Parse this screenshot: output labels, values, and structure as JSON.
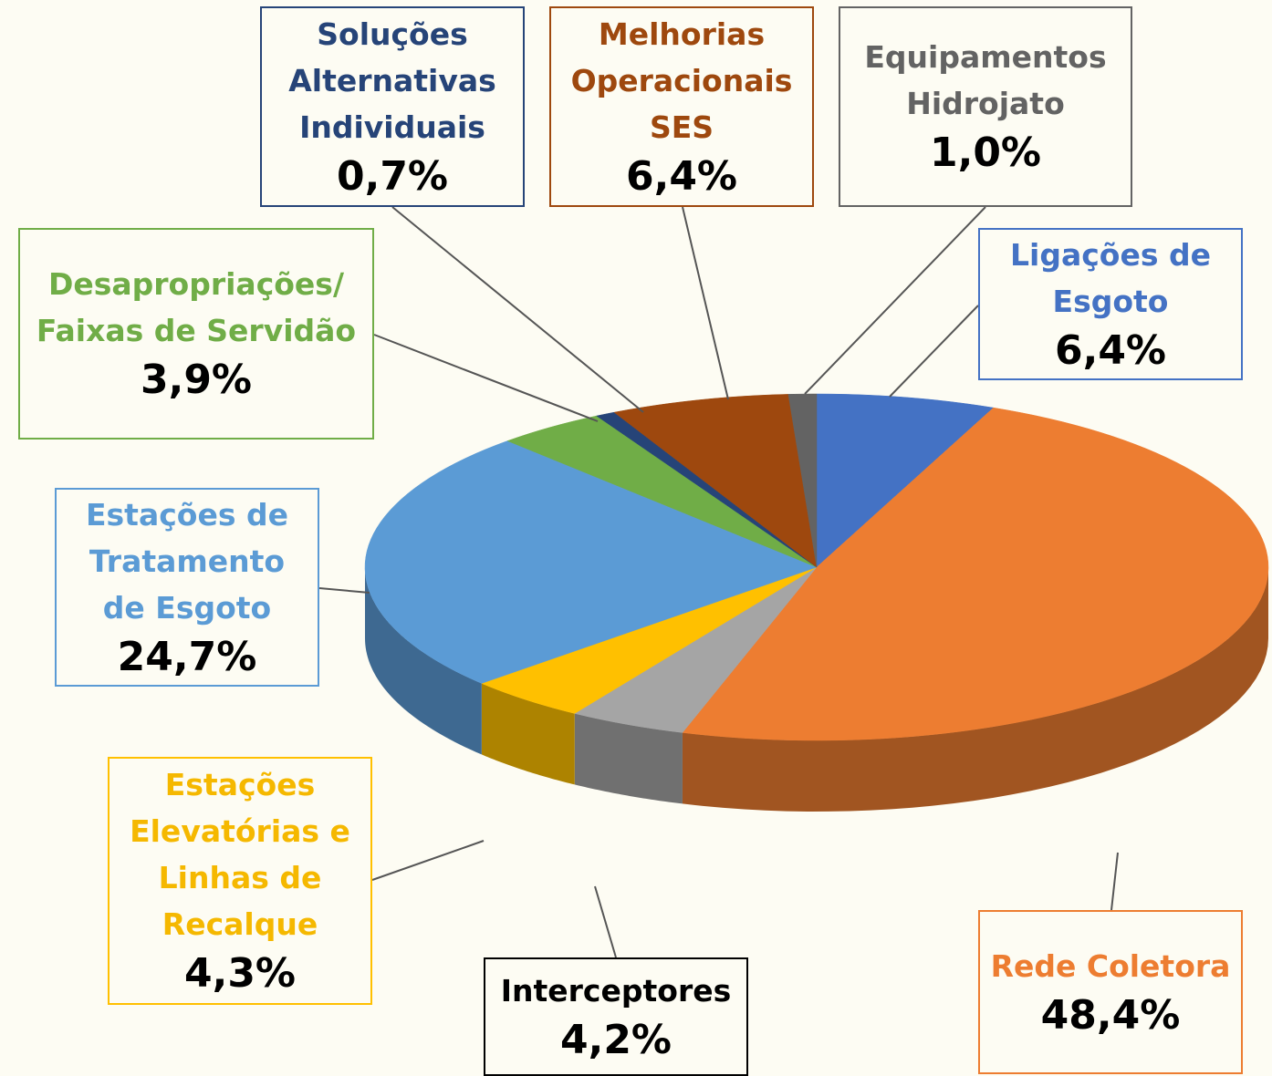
{
  "chart_data": {
    "type": "pie",
    "categories": [
      "Ligações de Esgoto",
      "Rede Coletora",
      "Interceptores",
      "Estações Elevatórias e Linhas de Recalque",
      "Estações de Tratamento de Esgoto",
      "Desapropriações/ Faixas de Servidão",
      "Soluções Alternativas Individuais",
      "Melhorias Operacionais SES",
      "Equipamentos Hidrojato"
    ],
    "values": [
      6.4,
      48.4,
      4.2,
      4.3,
      24.7,
      3.9,
      0.7,
      6.4,
      1.0
    ],
    "value_labels": [
      "6,4%",
      "48,4%",
      "4,2%",
      "4,3%",
      "24,7%",
      "3,9%",
      "0,7%",
      "6,4%",
      "1,0%"
    ],
    "colors": [
      "#4472c4",
      "#ed7d31",
      "#a5a5a5",
      "#ffc000",
      "#5b9bd5",
      "#70ad47",
      "#264478",
      "#9e480e",
      "#636363"
    ]
  }
}
